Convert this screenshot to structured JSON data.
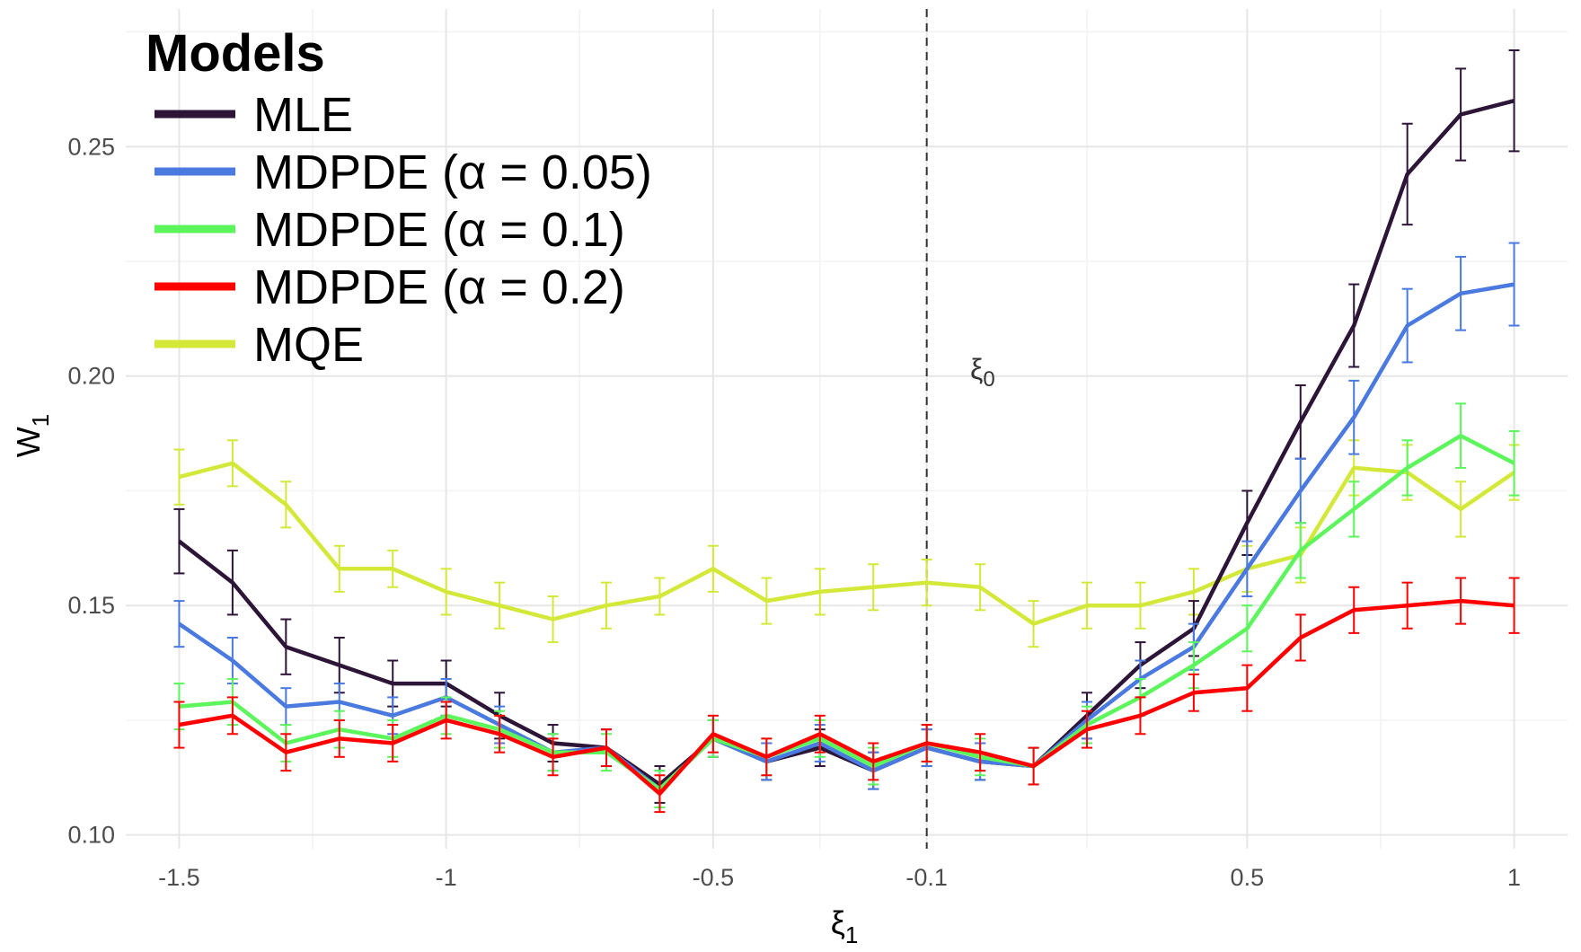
{
  "chart_data": {
    "type": "line",
    "xlabel": "ξ",
    "xlabel_sub": "1",
    "ylabel": "W",
    "ylabel_sub": "1",
    "xticks": [
      -1.5,
      -1,
      -0.5,
      -0.1,
      0.5,
      1
    ],
    "xtick_labels": [
      "-1.5",
      "-1",
      "-0.5",
      "-0.1",
      "0.5",
      "1"
    ],
    "yticks": [
      0.1,
      0.15,
      0.2,
      0.25
    ],
    "ytick_labels": [
      "0.10",
      "0.15",
      "0.20",
      "0.25"
    ],
    "xlim": [
      -1.6,
      1.1
    ],
    "ylim": [
      0.097,
      0.28
    ],
    "grid": true,
    "vline": {
      "x": -0.1,
      "style": "dashed",
      "label": "ξ",
      "label_sub": "0"
    },
    "legend": {
      "title": "Models",
      "position": "top-left"
    },
    "x": [
      -1.5,
      -1.4,
      -1.3,
      -1.2,
      -1.1,
      -1.0,
      -0.9,
      -0.8,
      -0.7,
      -0.6,
      -0.5,
      -0.4,
      -0.3,
      -0.2,
      -0.1,
      0.0,
      0.1,
      0.2,
      0.3,
      0.4,
      0.5,
      0.6,
      0.7,
      0.8,
      0.9,
      1.0
    ],
    "series": [
      {
        "name": "MQE",
        "color": "#d4e83a",
        "values": [
          0.178,
          0.181,
          0.172,
          0.158,
          0.158,
          0.153,
          0.15,
          0.147,
          0.15,
          0.152,
          0.158,
          0.151,
          0.153,
          0.154,
          0.155,
          0.154,
          0.146,
          0.15,
          0.15,
          0.153,
          0.158,
          0.161,
          0.18,
          0.179,
          0.171,
          0.179
        ],
        "errors": [
          0.006,
          0.005,
          0.005,
          0.005,
          0.004,
          0.005,
          0.005,
          0.005,
          0.005,
          0.004,
          0.005,
          0.005,
          0.005,
          0.005,
          0.005,
          0.005,
          0.005,
          0.005,
          0.005,
          0.005,
          0.005,
          0.006,
          0.006,
          0.006,
          0.006,
          0.006
        ]
      },
      {
        "name": "MLE",
        "color": "#2d1538",
        "values": [
          0.164,
          0.155,
          0.141,
          0.137,
          0.133,
          0.133,
          0.126,
          0.12,
          0.119,
          0.111,
          0.121,
          0.116,
          0.119,
          0.114,
          0.119,
          0.116,
          0.115,
          0.126,
          0.137,
          0.145,
          0.168,
          0.19,
          0.211,
          0.244,
          0.257,
          0.26
        ],
        "errors": [
          0.007,
          0.007,
          0.006,
          0.006,
          0.005,
          0.005,
          0.005,
          0.004,
          0.004,
          0.004,
          0.004,
          0.004,
          0.004,
          0.004,
          0.004,
          0.004,
          0.004,
          0.005,
          0.005,
          0.006,
          0.007,
          0.008,
          0.009,
          0.011,
          0.01,
          0.011
        ]
      },
      {
        "name": "MDPDE (α = 0.05)",
        "color": "#4a7ae0",
        "values": [
          0.146,
          0.138,
          0.128,
          0.129,
          0.126,
          0.13,
          0.124,
          0.118,
          0.119,
          0.11,
          0.121,
          0.116,
          0.12,
          0.114,
          0.119,
          0.116,
          0.115,
          0.125,
          0.134,
          0.141,
          0.158,
          0.175,
          0.191,
          0.211,
          0.218,
          0.22
        ],
        "errors": [
          0.005,
          0.005,
          0.004,
          0.004,
          0.004,
          0.004,
          0.004,
          0.004,
          0.004,
          0.004,
          0.004,
          0.004,
          0.004,
          0.004,
          0.004,
          0.004,
          0.004,
          0.004,
          0.004,
          0.005,
          0.006,
          0.007,
          0.008,
          0.008,
          0.008,
          0.009
        ]
      },
      {
        "name": "MDPDE (α = 0.1)",
        "color": "#5cf55c",
        "values": [
          0.128,
          0.129,
          0.12,
          0.123,
          0.121,
          0.126,
          0.123,
          0.118,
          0.118,
          0.11,
          0.121,
          0.117,
          0.121,
          0.115,
          0.12,
          0.117,
          0.115,
          0.124,
          0.13,
          0.137,
          0.145,
          0.162,
          0.171,
          0.18,
          0.187,
          0.181
        ],
        "errors": [
          0.005,
          0.005,
          0.004,
          0.004,
          0.004,
          0.004,
          0.004,
          0.004,
          0.004,
          0.004,
          0.004,
          0.004,
          0.004,
          0.004,
          0.004,
          0.004,
          0.004,
          0.004,
          0.004,
          0.005,
          0.005,
          0.006,
          0.006,
          0.006,
          0.007,
          0.007
        ]
      },
      {
        "name": "MDPDE (α = 0.2)",
        "color": "#ff0000",
        "values": [
          0.124,
          0.126,
          0.118,
          0.121,
          0.12,
          0.125,
          0.122,
          0.117,
          0.119,
          0.109,
          0.122,
          0.117,
          0.122,
          0.116,
          0.12,
          0.118,
          0.115,
          0.123,
          0.126,
          0.131,
          0.132,
          0.143,
          0.149,
          0.15,
          0.151,
          0.15
        ],
        "errors": [
          0.005,
          0.004,
          0.004,
          0.004,
          0.004,
          0.004,
          0.004,
          0.004,
          0.004,
          0.004,
          0.004,
          0.004,
          0.004,
          0.004,
          0.004,
          0.004,
          0.004,
          0.004,
          0.004,
          0.004,
          0.005,
          0.005,
          0.005,
          0.005,
          0.005,
          0.006
        ]
      }
    ],
    "legend_order": [
      "MLE",
      "MDPDE (α = 0.05)",
      "MDPDE (α = 0.1)",
      "MDPDE (α = 0.2)",
      "MQE"
    ]
  }
}
